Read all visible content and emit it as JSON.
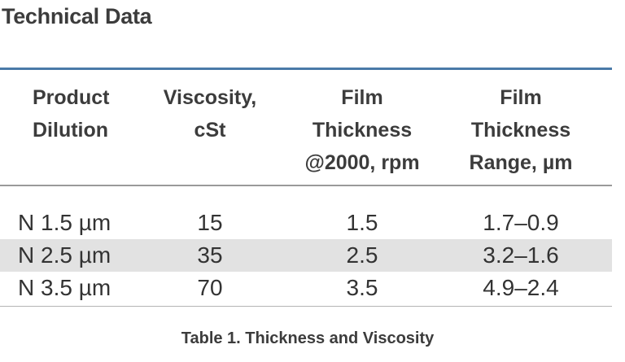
{
  "section_title": "Technical Data",
  "table": {
    "headers": [
      "Product\nDilution",
      "Viscosity,\ncSt",
      "Film\nThickness\n@2000, rpm",
      "Film\nThickness\nRange, µm"
    ],
    "rows": [
      [
        "N 1.5 µm",
        "15",
        "1.5",
        "1.7–0.9"
      ],
      [
        "N 2.5 µm",
        "35",
        "2.5",
        "3.2–1.6"
      ],
      [
        "N 3.5 µm",
        "70",
        "3.5",
        "4.9–2.4"
      ]
    ]
  },
  "caption": "Table 1. Thickness and Viscosity",
  "colors": {
    "top_rule": "#4a7aa8",
    "shaded_row": "#e2e2e2",
    "text": "#3c3c3c"
  }
}
